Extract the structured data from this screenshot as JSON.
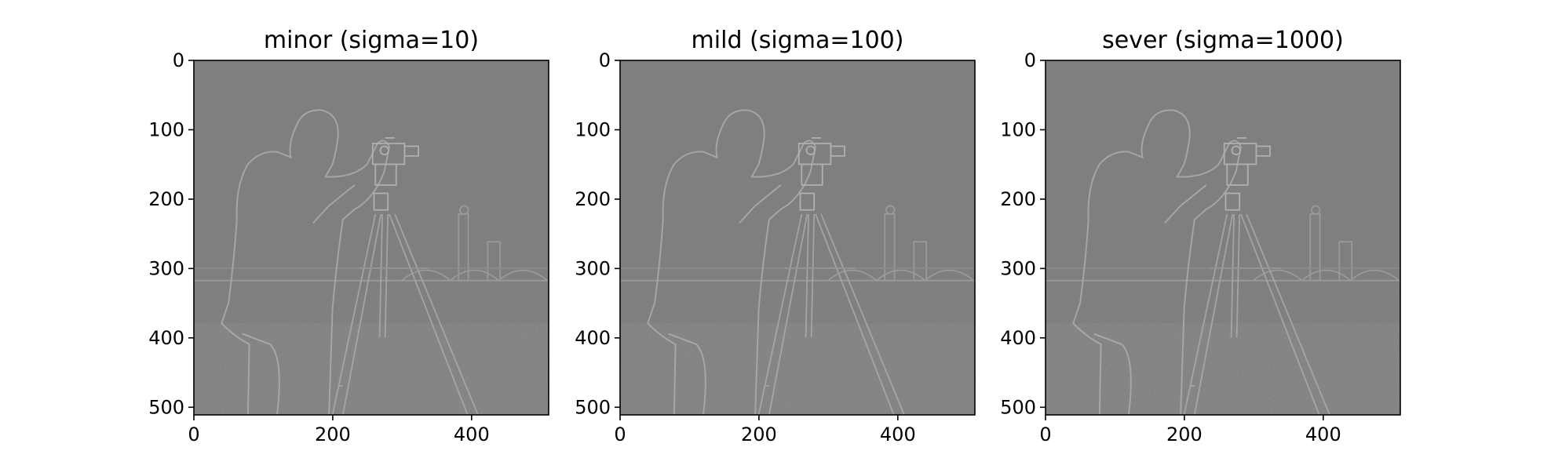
{
  "chart_data": [
    {
      "type": "heatmap",
      "title": "minor (sigma=10)",
      "xlim": [
        0,
        511
      ],
      "ylim": [
        511,
        0
      ],
      "xticks": [
        0,
        200,
        400
      ],
      "yticks": [
        0,
        100,
        200,
        300,
        400,
        500
      ],
      "colormap": "gray",
      "background_gray": "#808080",
      "legend": null
    },
    {
      "type": "heatmap",
      "title": "mild (sigma=100)",
      "xlim": [
        0,
        511
      ],
      "ylim": [
        511,
        0
      ],
      "xticks": [
        0,
        200,
        400
      ],
      "yticks": [
        0,
        100,
        200,
        300,
        400,
        500
      ],
      "colormap": "gray",
      "background_gray": "#808080",
      "legend": null
    },
    {
      "type": "heatmap",
      "title": "sever (sigma=1000)",
      "xlim": [
        0,
        511
      ],
      "ylim": [
        511,
        0
      ],
      "xticks": [
        0,
        200,
        400
      ],
      "yticks": [
        0,
        100,
        200,
        300,
        400,
        500
      ],
      "colormap": "gray",
      "background_gray": "#808080",
      "legend": null
    }
  ]
}
